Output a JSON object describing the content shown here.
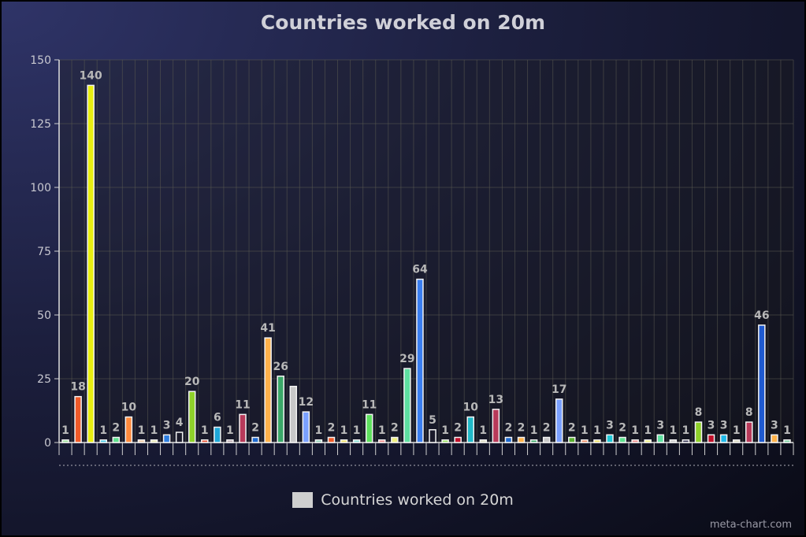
{
  "chart_data": {
    "type": "bar",
    "title": "Countries worked on 20m",
    "xlabel": "",
    "ylabel": "",
    "ylim": [
      0,
      150
    ],
    "yticks": [
      0,
      25,
      50,
      75,
      100,
      125,
      150
    ],
    "grid": true,
    "legend_position": "bottom",
    "series": [
      {
        "name": "Countries worked on 20m",
        "values": [
          1,
          18,
          140,
          1,
          2,
          10,
          1,
          1,
          3,
          4,
          20,
          1,
          6,
          1,
          11,
          2,
          41,
          26,
          22,
          12,
          1,
          2,
          1,
          1,
          11,
          1,
          2,
          29,
          64,
          5,
          1,
          2,
          10,
          1,
          13,
          2,
          2,
          1,
          2,
          17,
          2,
          1,
          1,
          3,
          2,
          1,
          1,
          3,
          1,
          1,
          8,
          3,
          3,
          1,
          8,
          46,
          3,
          1
        ],
        "labels": [
          "1",
          "18",
          "140",
          "1",
          "2",
          "10",
          "1",
          "1",
          "3",
          "4",
          "20",
          "1",
          "6",
          "1",
          "11",
          "2",
          "41",
          "26",
          "",
          "12",
          "1",
          "2",
          "1",
          "1",
          "11",
          "1",
          "2",
          "29",
          "64",
          "5",
          "1",
          "2",
          "10",
          "1",
          "13",
          "2",
          "2",
          "1",
          "2",
          "17",
          "2",
          "1",
          "1",
          "3",
          "2",
          "1",
          "1",
          "3",
          "1",
          "1",
          "8",
          "3",
          "3",
          "1",
          "8",
          "46",
          "3",
          "1"
        ]
      }
    ],
    "colors": [
      "#9adf9a",
      "#f05a28",
      "#e8ee10",
      "#45c8e6",
      "#5ee08e",
      "#ff8a3d",
      "#f0c8a0",
      "#e8e8b0",
      "#2f7fe0",
      "#1a1a2a",
      "#8fd12a",
      "#e85030",
      "#1fa8d8",
      "#b8a8b0",
      "#b83a5a",
      "#1f6ad0",
      "#ffb24a",
      "#3aa868",
      "#c8c8c8",
      "#7aa0ff",
      "#8fd0b8",
      "#f05a28",
      "#f0e060",
      "#86e0d6",
      "#5ee05e",
      "#f08a8a",
      "#f0f080",
      "#5ee0a0",
      "#3a7ef0",
      "#1a1a2a",
      "#98e060",
      "#c0102a",
      "#20b8c8",
      "#d8d8c0",
      "#b83a5a",
      "#1f6ad0",
      "#ffb24a",
      "#3aa868",
      "#c8c8c8",
      "#7aa0ff",
      "#5ab030",
      "#f08a60",
      "#f0e060",
      "#20c8d8",
      "#5ee08e",
      "#f08a8a",
      "#f0f080",
      "#5ee0a0",
      "#c8c8c8",
      "#3a3a5a",
      "#8fd12a",
      "#c0102a",
      "#20b8e8",
      "#d8d8c0",
      "#b83a5a",
      "#1f5ad0",
      "#ffb24a",
      "#7ad0a0"
    ]
  },
  "credit": "meta-chart.com"
}
